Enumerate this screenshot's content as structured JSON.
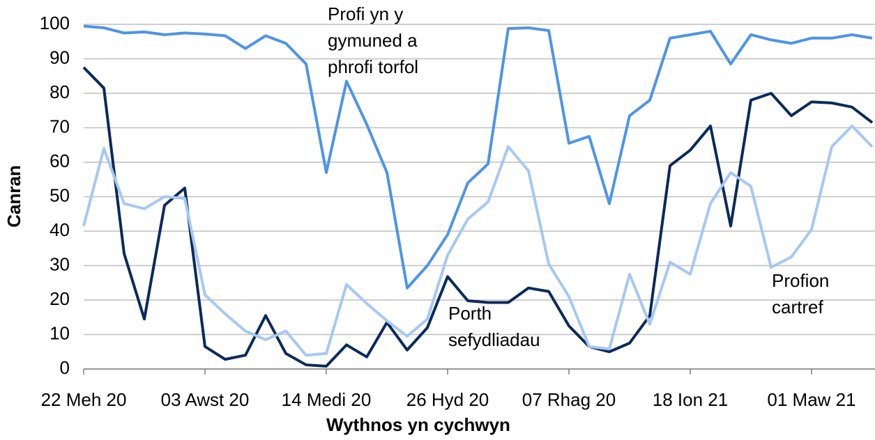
{
  "chart_data": {
    "type": "line",
    "xlabel": "Wythnos yn cychwyn",
    "ylabel": "Canran",
    "categories": [
      "22 Meh 20",
      null,
      null,
      null,
      null,
      null,
      "03 Awst 20",
      null,
      null,
      null,
      null,
      null,
      "14 Medi 20",
      null,
      null,
      null,
      null,
      null,
      "26 Hyd 20",
      null,
      null,
      null,
      null,
      null,
      "07 Rhag 20",
      null,
      null,
      null,
      null,
      null,
      "18 Ion 21",
      null,
      null,
      null,
      null,
      null,
      "01 Maw 21",
      null,
      null,
      null
    ],
    "ylim": [
      0,
      100
    ],
    "yticks": [
      0,
      10,
      20,
      30,
      40,
      50,
      60,
      70,
      80,
      90,
      100
    ],
    "grid": true,
    "series": [
      {
        "name_lines": [
          "Profi yn y",
          "gymuned a",
          "phrofi torfol"
        ],
        "color": "#4d94e8",
        "values": [
          99.5,
          99,
          97.5,
          97.8,
          97,
          97.5,
          97.2,
          96.7,
          93,
          96.7,
          94.5,
          88.5,
          57,
          83.5,
          71,
          57,
          23.5,
          30,
          39,
          54,
          59.5,
          98.8,
          99,
          98.2,
          65.5,
          67.5,
          48,
          73.5,
          78,
          96,
          97,
          98,
          88.5,
          97,
          95.5,
          94.5,
          96,
          96,
          97,
          96
        ]
      },
      {
        "name_lines": [
          "Porth",
          "sefydliadau"
        ],
        "color": "#0b2a5b",
        "values": [
          87.5,
          81.5,
          33.5,
          14.5,
          47.5,
          52.5,
          6.5,
          2.8,
          4,
          15.5,
          4.5,
          1.2,
          0.8,
          7,
          3.5,
          13.5,
          5.5,
          12,
          26.8,
          19.8,
          19.3,
          19.3,
          23.5,
          22.5,
          12.5,
          6.5,
          5,
          7.5,
          15.5,
          59,
          63.5,
          70.5,
          41.5,
          78,
          80,
          73.5,
          77.5,
          77.2,
          76,
          71.5
        ]
      },
      {
        "name_lines": [
          "Profion",
          "cartref"
        ],
        "color": "#a6c8f2",
        "values": [
          41.5,
          64,
          48,
          46.5,
          50,
          49.5,
          21.5,
          16,
          11,
          8.5,
          11,
          4,
          4.5,
          24.5,
          19,
          14,
          9.5,
          14.5,
          33,
          43.5,
          48.5,
          64.5,
          57.5,
          30.5,
          21,
          6.5,
          5.8,
          27.5,
          13,
          31,
          27.5,
          48,
          57,
          53,
          29.5,
          32.5,
          40.5,
          64.5,
          70.5,
          64.5
        ]
      }
    ]
  }
}
